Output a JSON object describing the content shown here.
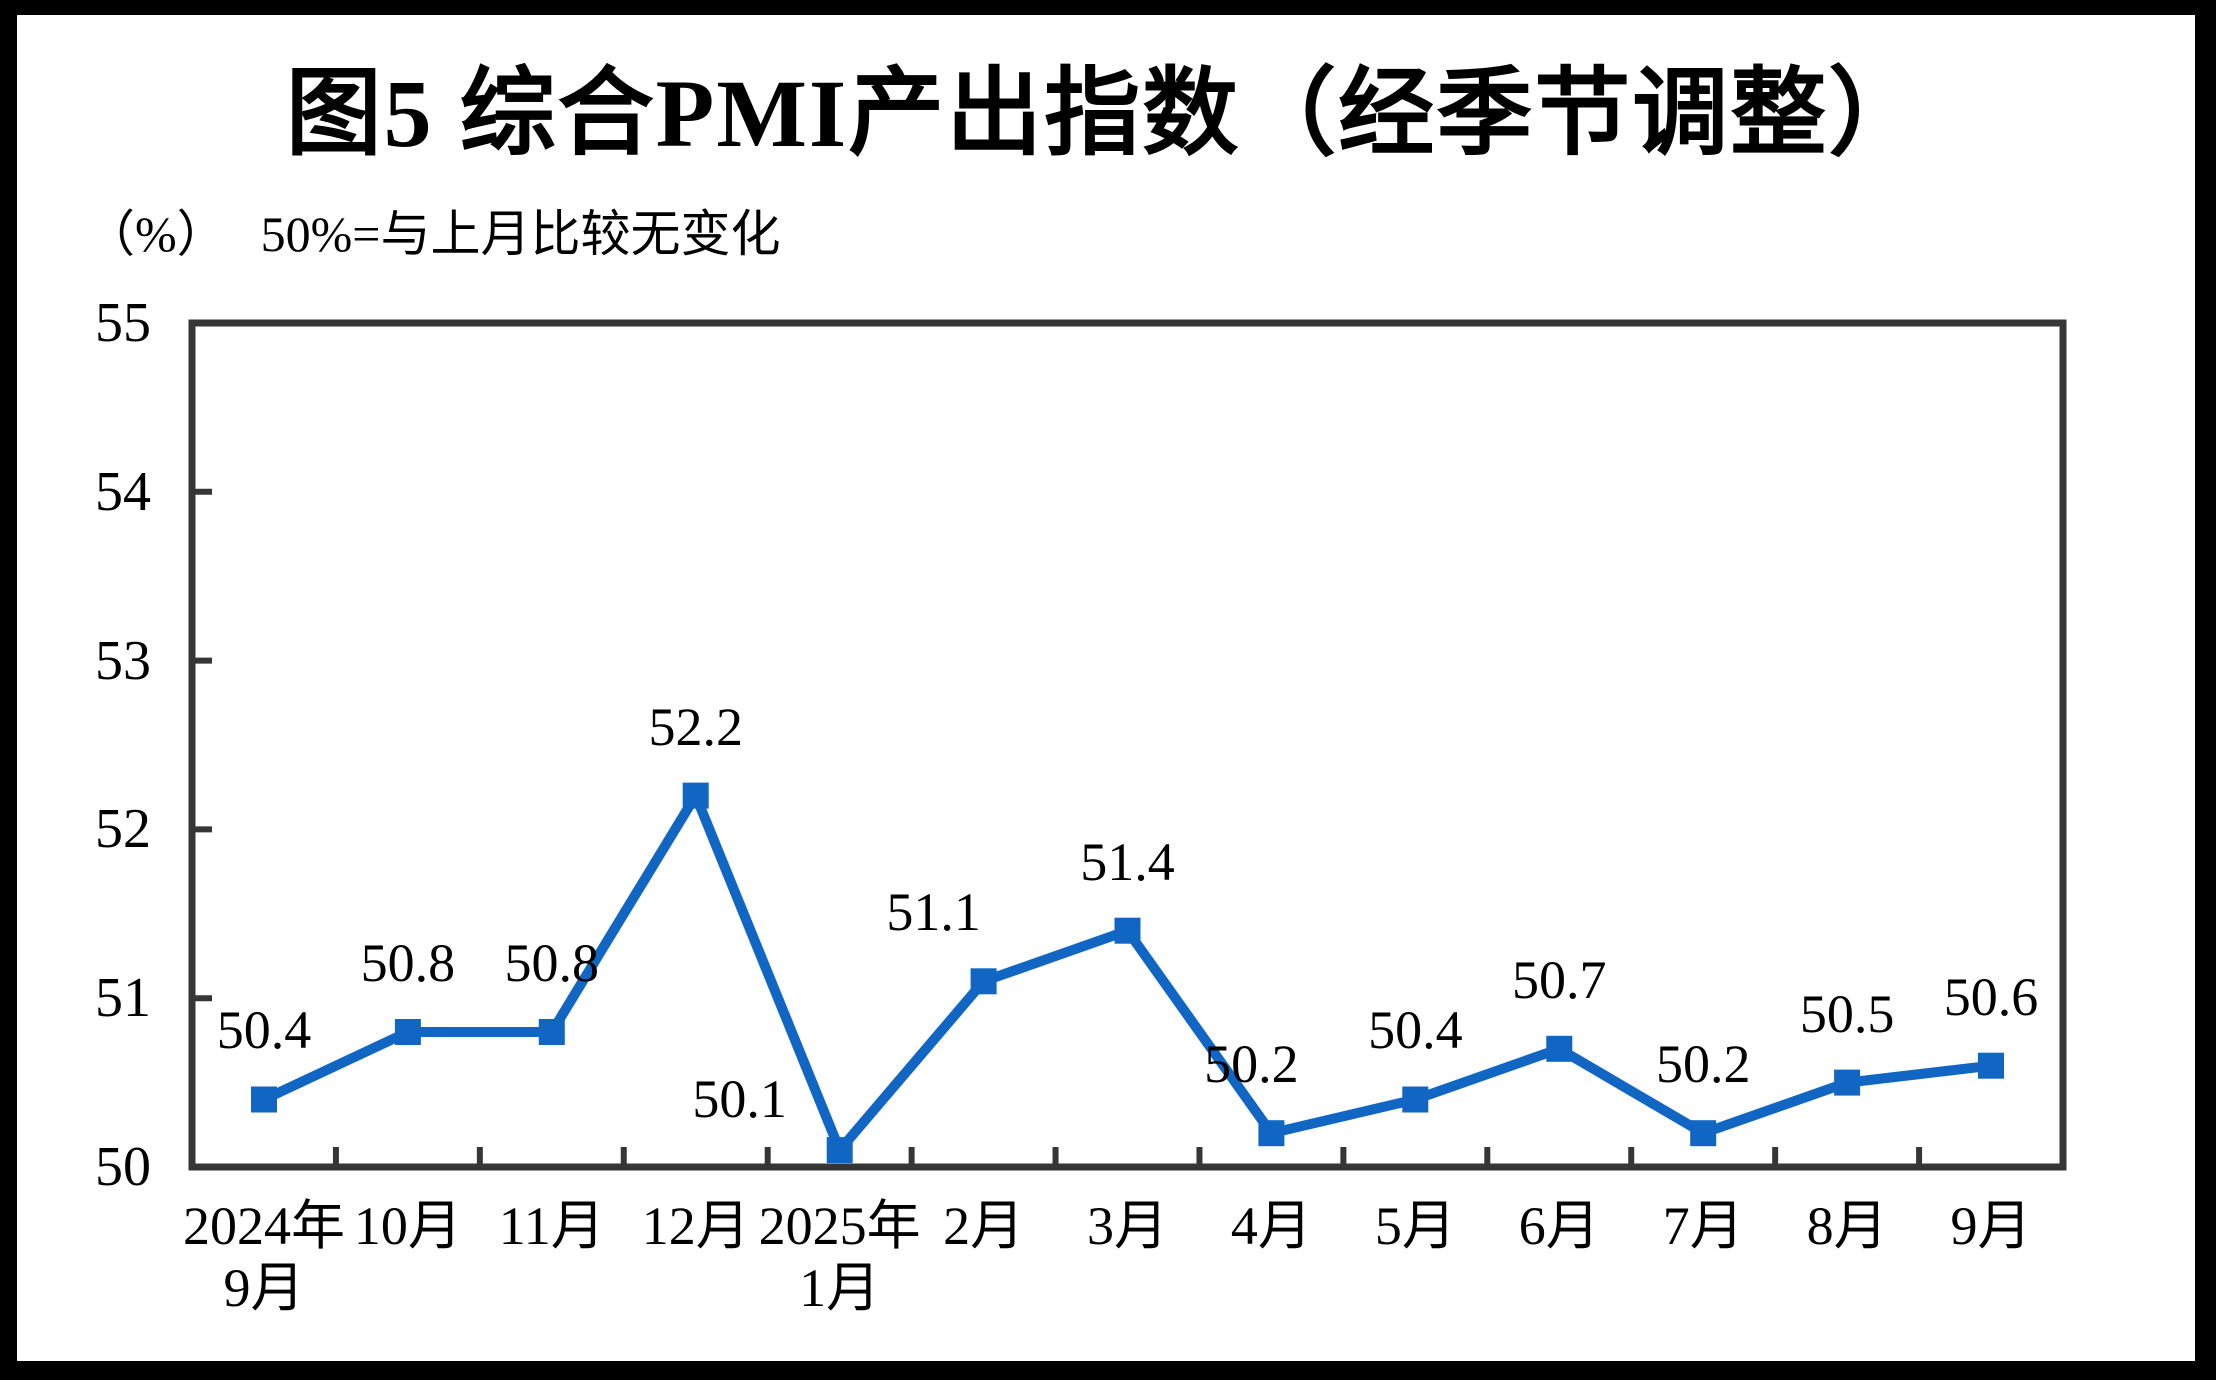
{
  "chart_data": {
    "type": "line",
    "title": "图5  综合PMI产出指数（经季节调整）",
    "unit_label": "（%）",
    "note": "50%=与上月比较无变化",
    "categories": [
      {
        "line1": "2024年",
        "line2": "9月"
      },
      {
        "line1": "10月"
      },
      {
        "line1": "11月"
      },
      {
        "line1": "12月"
      },
      {
        "line1": "2025年",
        "line2": "1月"
      },
      {
        "line1": "2月"
      },
      {
        "line1": "3月"
      },
      {
        "line1": "4月"
      },
      {
        "line1": "5月"
      },
      {
        "line1": "6月"
      },
      {
        "line1": "7月"
      },
      {
        "line1": "8月"
      },
      {
        "line1": "9月"
      }
    ],
    "values": [
      50.4,
      50.8,
      50.8,
      52.2,
      50.1,
      51.1,
      51.4,
      50.2,
      50.4,
      50.7,
      50.2,
      50.5,
      50.6
    ],
    "point_labels": [
      "50.4",
      "50.8",
      "50.8",
      "52.2",
      "50.1",
      "51.1",
      "51.4",
      "50.2",
      "50.4",
      "50.7",
      "50.2",
      "50.5",
      "50.6"
    ],
    "ylim": [
      50,
      55
    ],
    "yticks": [
      50,
      51,
      52,
      53,
      54,
      55
    ],
    "grid": false,
    "legend": "none",
    "line_color": "#1166C4",
    "axis_color": "#363636",
    "marker": "square",
    "label_offsets": {
      "4": [
        -100,
        -52
      ],
      "5": [
        -50,
        -70
      ],
      "7": [
        -20,
        -70
      ]
    }
  }
}
